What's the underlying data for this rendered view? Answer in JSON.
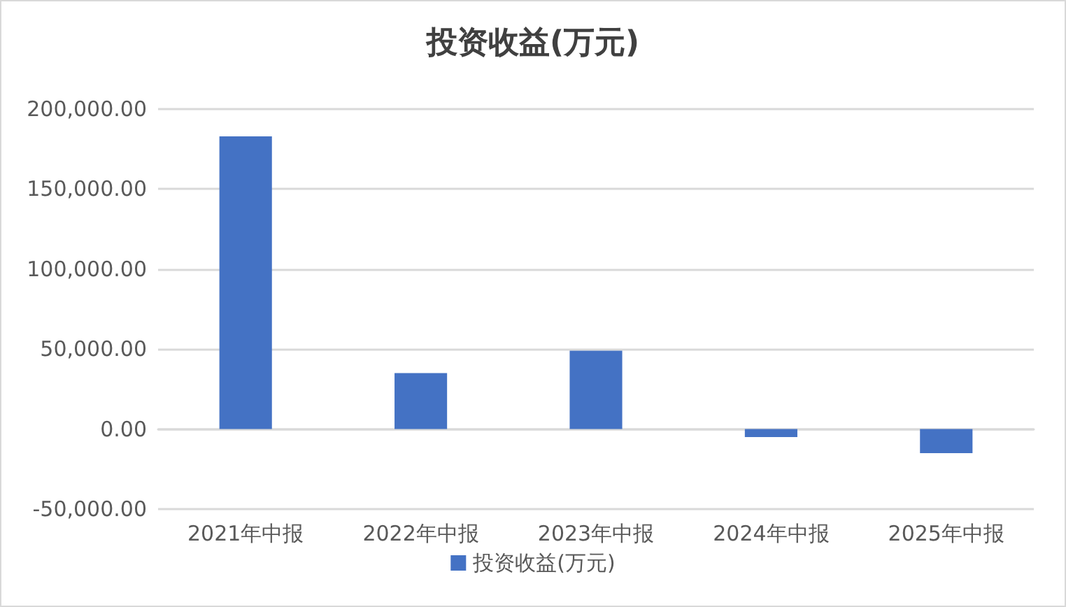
{
  "chart_data": {
    "type": "bar",
    "title": "投资收益(万元)",
    "categories": [
      "2021年中报",
      "2022年中报",
      "2023年中报",
      "2024年中报",
      "2025年中报"
    ],
    "series": [
      {
        "name": "投资收益(万元)",
        "color": "#4472c4",
        "values": [
          183000,
          35000,
          49000,
          -5000,
          -15000
        ]
      }
    ],
    "ylim": [
      -50000,
      200000
    ],
    "yticks": [
      {
        "value": -50000,
        "label": "-50,000.00"
      },
      {
        "value": 0,
        "label": "0.00"
      },
      {
        "value": 50000,
        "label": "50,000.00"
      },
      {
        "value": 100000,
        "label": "100,000.00"
      },
      {
        "value": 150000,
        "label": "150,000.00"
      },
      {
        "value": 200000,
        "label": "200,000.00"
      }
    ],
    "grid": "y",
    "legend": "bottom"
  }
}
